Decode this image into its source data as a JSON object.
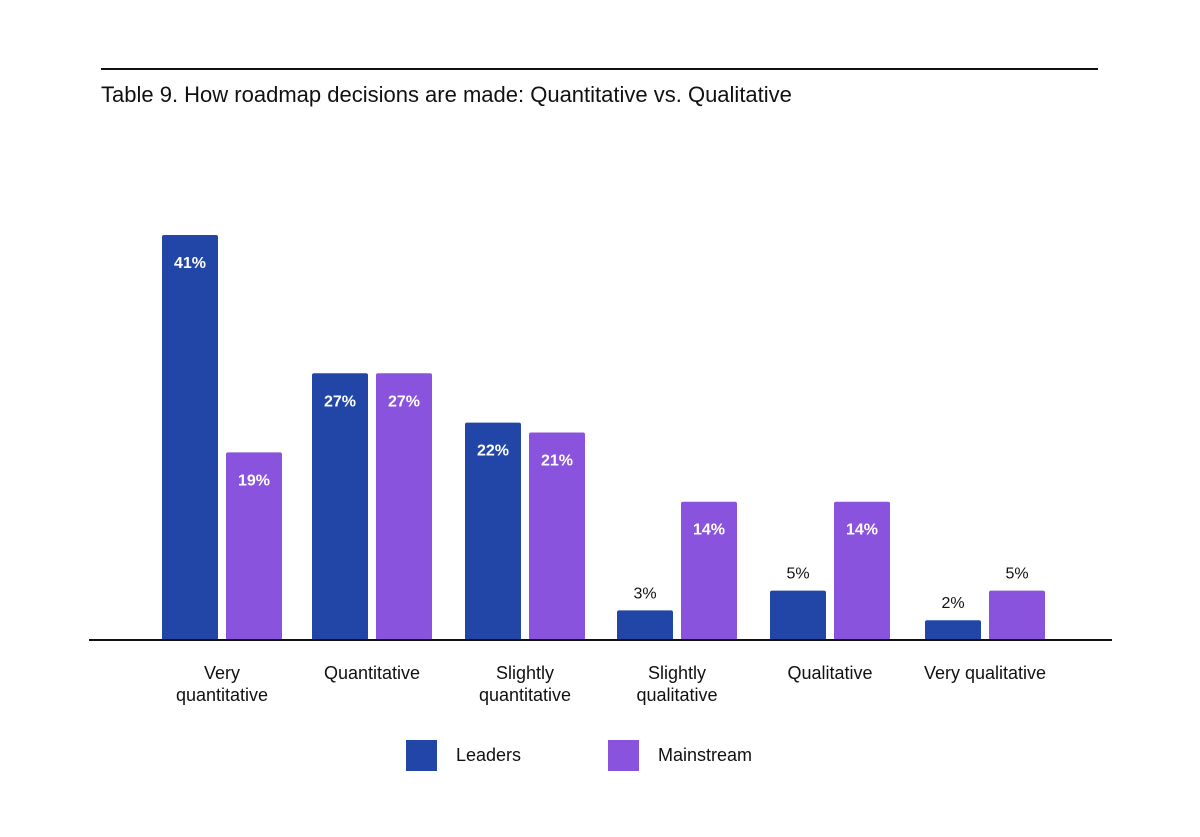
{
  "colors": {
    "leaders": "#2146a8",
    "mainstream": "#8a53dd",
    "axis": "#111111",
    "label_inside": "#ffffff",
    "label_outside": "#111111"
  },
  "chart_data": {
    "type": "bar",
    "title": "Table 9. How roadmap decisions are made: Quantitative vs. Qualitative",
    "categories": [
      [
        "Very",
        "quantitative"
      ],
      [
        "Quantitative"
      ],
      [
        "Slightly",
        "quantitative"
      ],
      [
        "Slightly",
        "qualitative"
      ],
      [
        "Qualitative"
      ],
      [
        "Very qualitative"
      ]
    ],
    "series": [
      {
        "name": "Leaders",
        "color": "#2146a8",
        "values": [
          41,
          27,
          22,
          3,
          5,
          2
        ]
      },
      {
        "name": "Mainstream",
        "color": "#8a53dd",
        "values": [
          19,
          27,
          21,
          14,
          14,
          5
        ]
      }
    ],
    "value_suffix": "%",
    "ylim": [
      0,
      41
    ],
    "grid": false,
    "legend_position": "bottom-center"
  }
}
